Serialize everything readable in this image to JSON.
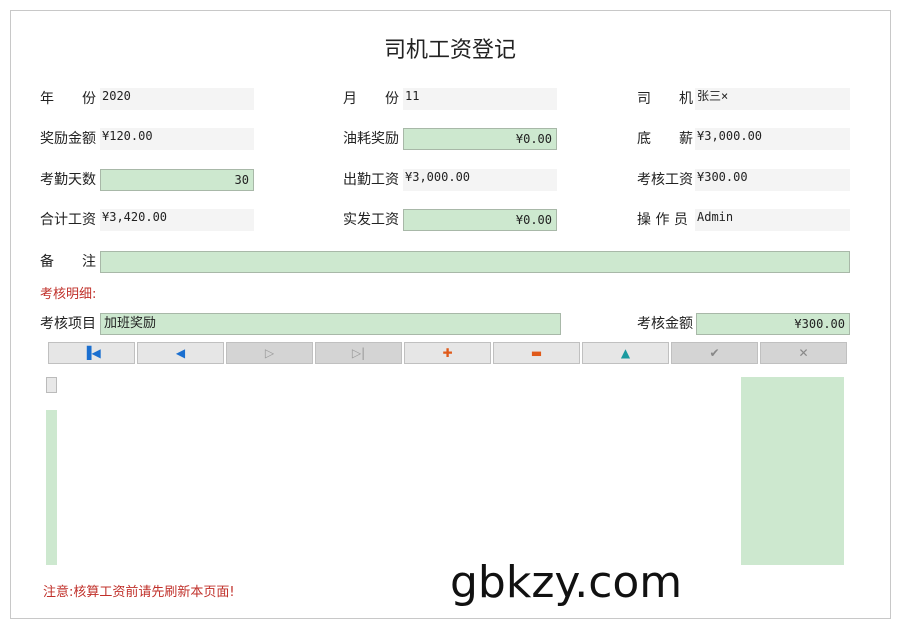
{
  "title": "司机工资登记",
  "fields": [
    {
      "label": "年　　份",
      "value": "2020",
      "editable": false
    },
    {
      "label": "月　　份",
      "value": "11",
      "editable": false
    },
    {
      "label": "司　　机",
      "value": "张三×",
      "editable": false
    },
    {
      "label": "奖励金额",
      "value": "¥120.00",
      "editable": false
    },
    {
      "label": "油耗奖励",
      "value": "¥0.00",
      "editable": true
    },
    {
      "label": "底　　薪",
      "value": "¥3,000.00",
      "editable": false
    },
    {
      "label": "考勤天数",
      "value": "30",
      "editable": true
    },
    {
      "label": "出勤工资",
      "value": "¥3,000.00",
      "editable": false
    },
    {
      "label": "考核工资",
      "value": "¥300.00",
      "editable": false
    },
    {
      "label": "合计工资",
      "value": "¥3,420.00",
      "editable": false
    },
    {
      "label": "实发工资",
      "value": "¥0.00",
      "editable": true
    },
    {
      "label": "操 作 员",
      "value": "Admin",
      "editable": false
    }
  ],
  "remark": {
    "label": "备　　注",
    "value": ""
  },
  "detail": {
    "heading": "考核明细:",
    "item_label": "考核项目",
    "item_value": "加班奖励",
    "amount_label": "考核金额",
    "amount_value": "¥300.00"
  },
  "toolbar": [
    {
      "name": "first-record-button",
      "icon": "first",
      "glyph": "▐◀",
      "color": "#1a6fd0",
      "enabled": true
    },
    {
      "name": "prev-record-button",
      "icon": "prev",
      "glyph": "◀",
      "color": "#1a6fd0",
      "enabled": true
    },
    {
      "name": "next-record-button",
      "icon": "next",
      "glyph": "▷",
      "color": "#999",
      "enabled": false
    },
    {
      "name": "last-record-button",
      "icon": "last",
      "glyph": "▷|",
      "color": "#999",
      "enabled": false
    },
    {
      "name": "add-button",
      "icon": "plus",
      "glyph": "✚",
      "color": "#e05a1a",
      "enabled": true
    },
    {
      "name": "delete-button",
      "icon": "minus",
      "glyph": "▬",
      "color": "#e05a1a",
      "enabled": true
    },
    {
      "name": "edit-button",
      "icon": "up-triangle",
      "glyph": "▲",
      "color": "#1a9aa0",
      "enabled": true
    },
    {
      "name": "save-button",
      "icon": "check",
      "glyph": "✔",
      "color": "#888",
      "enabled": false
    },
    {
      "name": "cancel-button",
      "icon": "x",
      "glyph": "✕",
      "color": "#888",
      "enabled": false
    }
  ],
  "note": "注意:核算工资前请先刷新本页面!",
  "watermark": "gbkzy.com"
}
